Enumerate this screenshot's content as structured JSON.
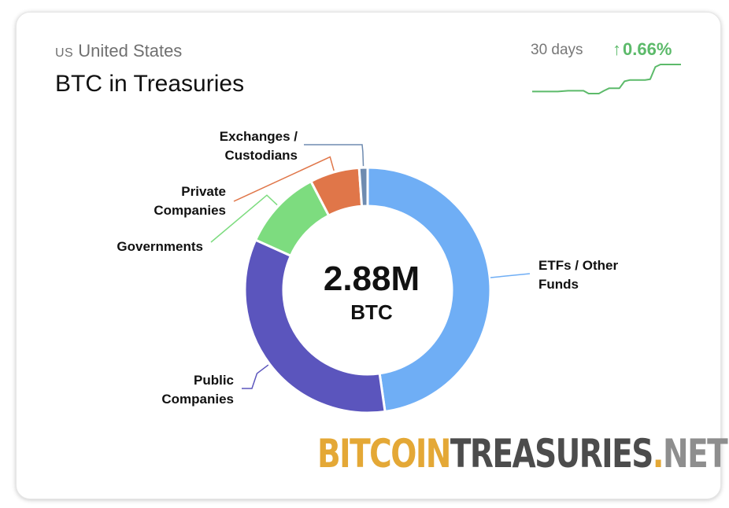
{
  "header": {
    "country_code": "US",
    "country_name": "United States",
    "title": "BTC in Treasuries",
    "period": "30 days",
    "change": "0.66%",
    "change_arrow": "↑"
  },
  "center": {
    "value": "2.88M",
    "unit": "BTC"
  },
  "brand": {
    "part1": "BITCOIN",
    "part2": "TREASURIES",
    "part3": ".",
    "part4": "NET"
  },
  "colors": {
    "etfs": "#6faef5",
    "public": "#5b55bd",
    "governments": "#7ddc7f",
    "private": "#e07649",
    "exchanges": "#6e8bb0",
    "trend_up": "#5cba6a"
  },
  "chart_data": [
    {
      "type": "pie",
      "style": "donut",
      "labels": [
        "ETFs / Other Funds",
        "Public Companies",
        "Governments",
        "Private Companies",
        "Exchanges / Custodians"
      ],
      "label_lines": [
        [
          "ETFs / Other",
          "Funds"
        ],
        [
          "Public",
          "Companies"
        ],
        [
          "Governments"
        ],
        [
          "Private",
          "Companies"
        ],
        [
          "Exchanges /",
          "Custodians"
        ]
      ],
      "values": [
        47.5,
        33.8,
        10.6,
        6.5,
        1.1
      ],
      "colors": [
        "#6faef5",
        "#5b55bd",
        "#7ddc7f",
        "#e07649",
        "#6e8bb0"
      ],
      "total_label": "2.88M BTC"
    },
    {
      "type": "line",
      "title": "30 days",
      "x": [
        1,
        2,
        3,
        4,
        5,
        6,
        7,
        8,
        9,
        10,
        11,
        12,
        13,
        14,
        15,
        16,
        17,
        18,
        19,
        20,
        21,
        22,
        23,
        24,
        25,
        26,
        27,
        28,
        29,
        30
      ],
      "y": [
        0,
        0,
        0,
        0,
        0,
        0,
        0.01,
        0.02,
        0.02,
        0.02,
        0.02,
        -0.05,
        -0.05,
        -0.05,
        0.02,
        0.08,
        0.08,
        0.08,
        0.25,
        0.28,
        0.28,
        0.28,
        0.28,
        0.3,
        0.6,
        0.66,
        0.66,
        0.66,
        0.66,
        0.66
      ],
      "color": "#5cba6a"
    }
  ]
}
